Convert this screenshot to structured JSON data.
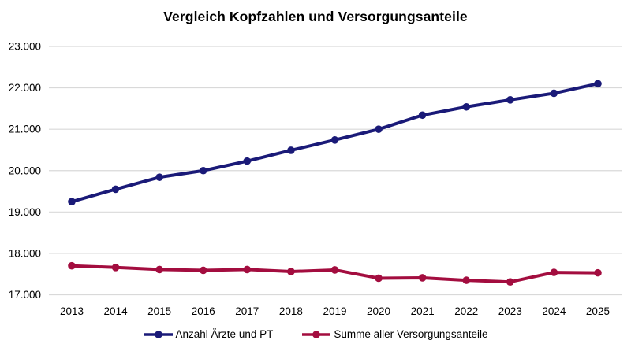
{
  "title": "Vergleich Kopfzahlen und Versorgungsanteile",
  "chart_data": {
    "type": "line",
    "categories": [
      "2013",
      "2014",
      "2015",
      "2016",
      "2017",
      "2018",
      "2019",
      "2020",
      "2021",
      "2022",
      "2023",
      "2024",
      "2025"
    ],
    "series": [
      {
        "name": "Anzahl Ärzte und PT",
        "color": "#1A1A78",
        "values": [
          19250,
          19550,
          19840,
          20000,
          20230,
          20490,
          20740,
          21000,
          21340,
          21540,
          21710,
          21870,
          22100
        ]
      },
      {
        "name": "Summe aller Versorgungsanteile",
        "color": "#A30D3F",
        "values": [
          17700,
          17660,
          17610,
          17590,
          17610,
          17560,
          17600,
          17400,
          17410,
          17350,
          17310,
          17540,
          17530
        ]
      }
    ],
    "xlabel": "",
    "ylabel": "",
    "ylim": [
      17000,
      23000
    ],
    "ytick_values": [
      17000,
      18000,
      19000,
      20000,
      21000,
      22000,
      23000
    ],
    "ytick_labels": [
      "17.000",
      "18.000",
      "19.000",
      "20.000",
      "21.000",
      "22.000",
      "23.000"
    ],
    "grid": true,
    "grid_color": "#D9D9D9",
    "text_color": "#000000",
    "background_color": "#FFFFFF",
    "legend_position": "bottom",
    "marker": "circle"
  }
}
